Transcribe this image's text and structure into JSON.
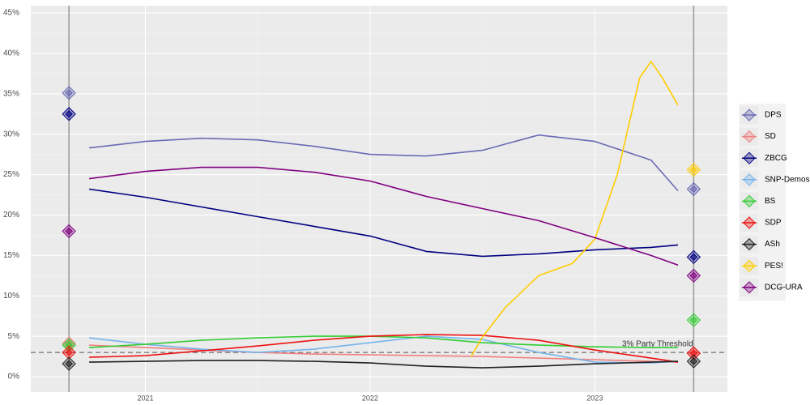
{
  "chart_data": {
    "type": "line",
    "xlim": [
      2020.49,
      2023.59
    ],
    "xticks": [
      2021,
      2022,
      2023
    ],
    "ylim": [
      -1.9,
      45.9
    ],
    "yticks": [
      {
        "value": 0,
        "label": "0%"
      },
      {
        "value": 5,
        "label": "5%"
      },
      {
        "value": 10,
        "label": "10%"
      },
      {
        "value": 15,
        "label": "15%"
      },
      {
        "value": 20,
        "label": "20%"
      },
      {
        "value": 25,
        "label": "25%"
      },
      {
        "value": 30,
        "label": "30%"
      },
      {
        "value": 35,
        "label": "35%"
      },
      {
        "value": 40,
        "label": "40%"
      },
      {
        "value": 45,
        "label": "45%"
      }
    ],
    "grid": true,
    "legend": "right",
    "threshold": 3,
    "threshold_label": "3% Party Threshold",
    "elections": {
      "x": [
        2020.66,
        2023.44
      ]
    },
    "series": [
      {
        "name": "DPS",
        "color": "#6a6ab5",
        "x": [
          2020.75,
          2021.0,
          2021.25,
          2021.5,
          2021.75,
          2022.0,
          2022.25,
          2022.5,
          2022.75,
          2023.0,
          2023.25,
          2023.37
        ],
        "values": [
          28.3,
          29.1,
          29.5,
          29.3,
          28.5,
          27.5,
          27.3,
          28.0,
          29.9,
          29.1,
          26.8,
          23.0
        ],
        "results": [
          35.1,
          23.2
        ]
      },
      {
        "name": "SD",
        "color": "#f08080",
        "x": [
          2020.75,
          2021.0,
          2021.25,
          2021.5,
          2021.75,
          2022.0,
          2022.25,
          2022.5,
          2022.75,
          2023.0,
          2023.25,
          2023.37
        ],
        "values": [
          3.9,
          3.6,
          3.3,
          3.0,
          2.8,
          2.7,
          2.6,
          2.5,
          2.3,
          2.1,
          1.9,
          1.8
        ],
        "results": [
          4.1,
          2.9
        ]
      },
      {
        "name": "ZBCG",
        "color": "#000080",
        "x": [
          2020.75,
          2021.0,
          2021.25,
          2021.5,
          2021.75,
          2022.0,
          2022.25,
          2022.5,
          2022.75,
          2023.0,
          2023.25,
          2023.37
        ],
        "values": [
          23.2,
          22.2,
          21.0,
          19.8,
          18.6,
          17.4,
          15.5,
          14.9,
          15.2,
          15.7,
          16.0,
          16.3
        ],
        "results": [
          32.5,
          14.8
        ]
      },
      {
        "name": "SNP-Demos",
        "color": "#74b4ec",
        "x": [
          2020.75,
          2021.0,
          2021.25,
          2021.5,
          2021.75,
          2022.0,
          2022.25,
          2022.5,
          2022.75,
          2023.0,
          2023.25,
          2023.37
        ],
        "values": [
          4.8,
          4.0,
          3.4,
          3.0,
          3.4,
          4.2,
          5.0,
          4.6,
          3.0,
          1.8,
          1.7,
          1.9
        ],
        "results": [
          null,
          null
        ]
      },
      {
        "name": "BS",
        "color": "#33cc33",
        "x": [
          2020.75,
          2021.0,
          2021.25,
          2021.5,
          2021.75,
          2022.0,
          2022.25,
          2022.5,
          2022.75,
          2023.0,
          2023.25,
          2023.37
        ],
        "values": [
          3.6,
          4.0,
          4.5,
          4.8,
          5.0,
          5.0,
          4.8,
          4.2,
          3.9,
          3.7,
          3.6,
          3.6
        ],
        "results": [
          3.9,
          7.0
        ]
      },
      {
        "name": "SDP",
        "color": "#ee1111",
        "x": [
          2020.75,
          2021.0,
          2021.25,
          2021.5,
          2021.75,
          2022.0,
          2022.25,
          2022.5,
          2022.75,
          2023.0,
          2023.25,
          2023.37
        ],
        "values": [
          2.4,
          2.6,
          3.2,
          3.8,
          4.5,
          5.0,
          5.2,
          5.1,
          4.5,
          3.3,
          2.3,
          1.8
        ],
        "results": [
          3.0,
          2.9
        ]
      },
      {
        "name": "ASh",
        "color": "#222222",
        "x": [
          2020.75,
          2021.0,
          2021.25,
          2021.5,
          2021.75,
          2022.0,
          2022.25,
          2022.5,
          2022.75,
          2023.0,
          2023.25,
          2023.37
        ],
        "values": [
          1.8,
          1.9,
          2.0,
          2.0,
          1.9,
          1.7,
          1.3,
          1.1,
          1.3,
          1.6,
          1.8,
          1.9
        ],
        "results": [
          1.6,
          1.9
        ]
      },
      {
        "name": "PES!",
        "color": "#ffcc00",
        "x": [
          2022.45,
          2022.5,
          2022.6,
          2022.75,
          2022.9,
          2023.0,
          2023.1,
          2023.2,
          2023.25,
          2023.3,
          2023.37
        ],
        "values": [
          2.5,
          4.9,
          8.5,
          12.5,
          14.0,
          17.0,
          25.0,
          37.0,
          39.0,
          37.0,
          33.6
        ],
        "results": [
          null,
          25.6
        ]
      },
      {
        "name": "DCG-URA",
        "color": "#800080",
        "x": [
          2020.75,
          2021.0,
          2021.25,
          2021.5,
          2021.75,
          2022.0,
          2022.25,
          2022.5,
          2022.75,
          2023.0,
          2023.25,
          2023.37
        ],
        "values": [
          24.5,
          25.4,
          25.9,
          25.9,
          25.3,
          24.2,
          22.3,
          20.8,
          19.3,
          17.2,
          15.0,
          13.8
        ],
        "results": [
          18.0,
          12.5
        ]
      }
    ]
  }
}
